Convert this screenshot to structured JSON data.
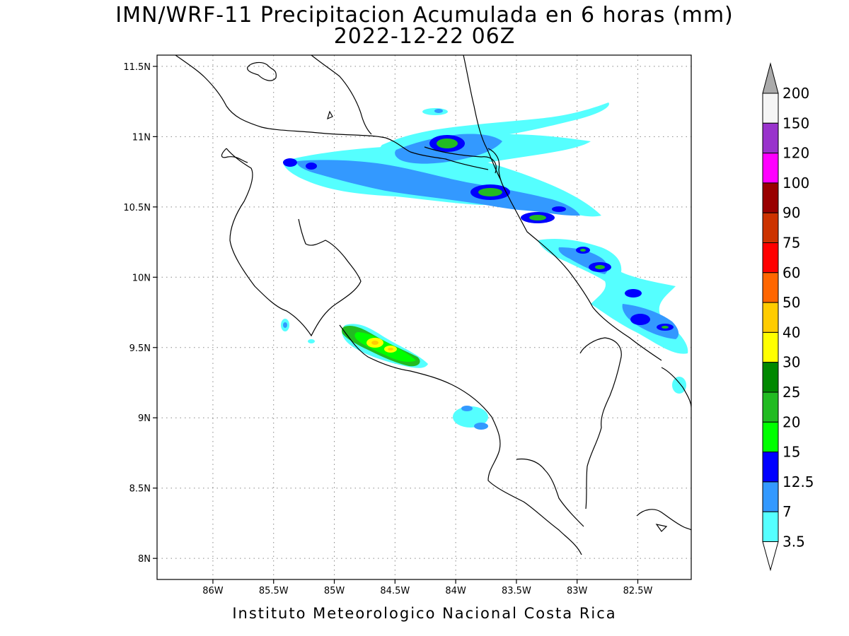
{
  "title": {
    "line1": "IMN/WRF-11 Precipitacion Acumulada en 6 horas (mm)",
    "line2": "2022-12-22 06Z"
  },
  "footer": "Instituto Meteorologico Nacional Costa Rica",
  "map": {
    "lon_range": [
      -86.46,
      -82.06
    ],
    "lat_range": [
      7.85,
      11.58
    ],
    "x_ticks": [
      {
        "lon": -86.0,
        "label": "86W"
      },
      {
        "lon": -85.5,
        "label": "85.5W"
      },
      {
        "lon": -85.0,
        "label": "85W"
      },
      {
        "lon": -84.5,
        "label": "84.5W"
      },
      {
        "lon": -84.0,
        "label": "84W"
      },
      {
        "lon": -83.5,
        "label": "83.5W"
      },
      {
        "lon": -83.0,
        "label": "83W"
      },
      {
        "lon": -82.5,
        "label": "82.5W"
      }
    ],
    "y_ticks": [
      {
        "lat": 11.5,
        "label": "11.5N"
      },
      {
        "lat": 11.0,
        "label": "11N"
      },
      {
        "lat": 10.5,
        "label": "10.5N"
      },
      {
        "lat": 10.0,
        "label": "10N"
      },
      {
        "lat": 9.5,
        "label": "9.5N"
      },
      {
        "lat": 9.0,
        "label": "9N"
      },
      {
        "lat": 8.5,
        "label": "8.5N"
      },
      {
        "lat": 8.0,
        "label": "8N"
      }
    ],
    "grid": "dotted",
    "coastline_color": "#000000"
  },
  "colorbar": {
    "levels": [
      {
        "label": "200",
        "color": "#aaaaaa"
      },
      {
        "label": "150",
        "color": "#f5f5f5"
      },
      {
        "label": "120",
        "color": "#9933cc"
      },
      {
        "label": "100",
        "color": "#ff00ff"
      },
      {
        "label": "90",
        "color": "#990000"
      },
      {
        "label": "75",
        "color": "#cc3300"
      },
      {
        "label": "60",
        "color": "#ff0000"
      },
      {
        "label": "50",
        "color": "#ff6600"
      },
      {
        "label": "40",
        "color": "#ffcc00"
      },
      {
        "label": "30",
        "color": "#ffff00"
      },
      {
        "label": "25",
        "color": "#008800"
      },
      {
        "label": "20",
        "color": "#22bb22"
      },
      {
        "label": "15",
        "color": "#00ff00"
      },
      {
        "label": "12.5",
        "color": "#0000ff"
      },
      {
        "label": "7",
        "color": "#3399ff"
      },
      {
        "label": "3.5",
        "color": "#55ffff"
      }
    ],
    "top_arrow_color": "#aaaaaa",
    "bottom_arrow_color": "#ffffff"
  },
  "chart_data": {
    "type": "heatmap",
    "variable": "6-hour accumulated precipitation (mm)",
    "bands": [
      {
        "name": "band-north-guanacaste",
        "lon_range": [
          -85.5,
          -83.8
        ],
        "lat_range": [
          10.6,
          10.9
        ],
        "max_mm": 15
      },
      {
        "name": "band-nicaragua-caribbean",
        "lon_range": [
          -84.5,
          -82.9
        ],
        "lat_range": [
          10.8,
          11.3
        ],
        "max_mm": 20
      },
      {
        "name": "band-caribbean-coast",
        "lon_range": [
          -83.9,
          -82.0
        ],
        "lat_range": [
          9.5,
          10.75
        ],
        "max_mm": 20
      },
      {
        "name": "band-pacific-central",
        "lon_range": [
          -84.95,
          -84.2
        ],
        "lat_range": [
          9.3,
          9.7
        ],
        "max_mm": 40
      }
    ]
  }
}
